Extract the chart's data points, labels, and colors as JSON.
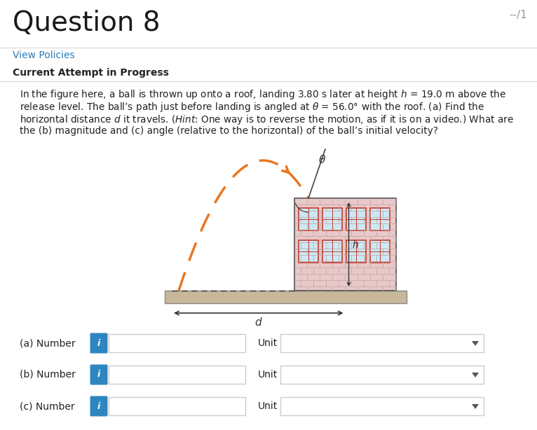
{
  "title": "Question 8",
  "title_score": "--/1",
  "link_text": "View Policies",
  "bold_text": "Current Attempt in Progress",
  "bg_color": "#ffffff",
  "title_color": "#1a1a1a",
  "link_color": "#2b7bb9",
  "text_color": "#222222",
  "input_bg": "#ffffff",
  "input_border": "#cccccc",
  "info_btn_color": "#2e86c1",
  "labels": [
    "(a) Number",
    "(b) Number",
    "(c) Number"
  ],
  "unit_label": "Unit",
  "building_fill": "#e8c9c9",
  "building_edge": "#555555",
  "brick_line_color": "#c9a0a0",
  "ground_fill": "#c8b89a",
  "ground_edge": "#888888",
  "window_fill": "#cce8f4",
  "window_edge": "#c0392b",
  "arc_color": "#e87722",
  "line_color": "#333333",
  "para_lines": [
    "In the figure here, a ball is thrown up onto a roof, landing 3.80 s later at height $h$ = 19.0 m above the",
    "release level. The ball’s path just before landing is angled at $\\theta$ = 56.0° with the roof. (a) Find the",
    "horizontal distance $d$ it travels. ($\\it{Hint}$: One way is to reverse the motion, as if it is on a video.) What are",
    "the (b) magnitude and (c) angle (relative to the horizontal) of the ball’s initial velocity?"
  ]
}
